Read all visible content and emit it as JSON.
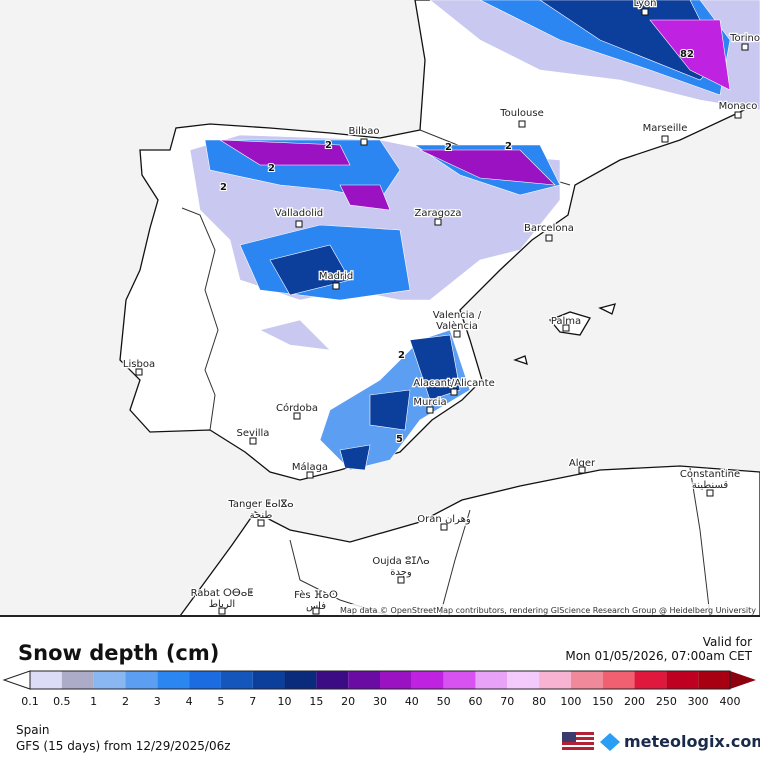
{
  "map": {
    "cities": [
      "Lyon",
      "Torino",
      "Monaco",
      "Toulouse",
      "Marseille",
      "Bilbao",
      "Valladolid",
      "Zaragoza",
      "Barcelona",
      "Madrid",
      "Valencia /",
      "València",
      "Palma",
      "Lisboa",
      "Alacant/Alicante",
      "Murcia",
      "Córdoba",
      "Sevilla",
      "Málaga",
      "Alger",
      "Constantine",
      "قسنطينة",
      "Tanger ⵟⴰⵏⴵⴰ",
      "طنجة",
      "Oran وهران",
      "Oujda ⵓⵊⴷⴰ",
      "وجدة",
      "Rabat ⵔⴱⴰⵟ",
      "الرباط",
      "Fès ⴼⴰⵙ",
      "فاس"
    ],
    "contour_labels": [
      "82",
      "2",
      "2",
      "2",
      "2",
      "2",
      "2",
      "5"
    ],
    "attribution": "Map data © OpenStreetMap contributors, rendering GIScience Research Group @ Heidelberg University"
  },
  "legend": {
    "title": "Snow depth (cm)",
    "labels": [
      "0.1",
      "0.5",
      "1",
      "2",
      "3",
      "4",
      "5",
      "7",
      "10",
      "15",
      "20",
      "30",
      "40",
      "50",
      "60",
      "70",
      "80",
      "100",
      "150",
      "200",
      "250",
      "300",
      "400"
    ],
    "colors": [
      "#dcdcf6",
      "#acacc8",
      "#8ab6f2",
      "#5c9ef2",
      "#2c86f2",
      "#1a6ce0",
      "#1456bc",
      "#0c3e9c",
      "#0a2a7c",
      "#3c0c84",
      "#6a0ca4",
      "#9a12c2",
      "#c022e2",
      "#d852f2",
      "#e8a2f8",
      "#f4cafc",
      "#f8b2d2",
      "#f08a9a",
      "#f06070",
      "#e0183e",
      "#c00020",
      "#a80012",
      "#8c0010"
    ]
  },
  "valid": {
    "label": "Valid for",
    "time": "Mon 01/05/2026, 07:00am CET"
  },
  "region": "Spain",
  "model": "GFS (15 days) from  12/29/2025/06z",
  "brand": "meteologix.com"
}
